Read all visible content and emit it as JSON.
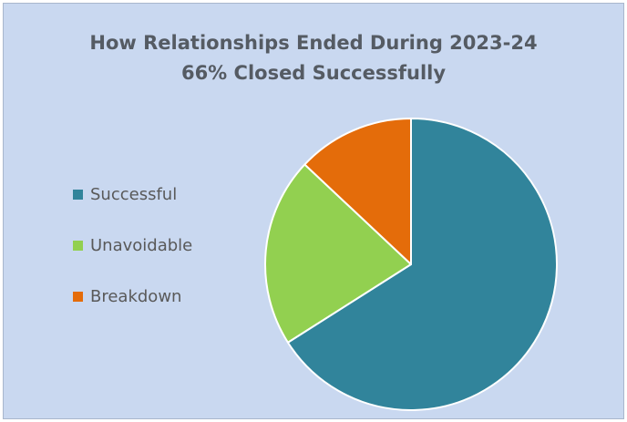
{
  "chart_data": {
    "type": "pie",
    "title": "How Relationships Ended During 2023-24",
    "subtitle": "66% Closed Successfully",
    "categories": [
      "Successful",
      "Unavoidable",
      "Breakdown"
    ],
    "values": [
      66,
      21,
      13
    ],
    "colors": [
      "#31849b",
      "#92d050",
      "#e46c0a"
    ],
    "legend_position": "left",
    "start_angle_deg": 0,
    "direction": "clockwise"
  }
}
